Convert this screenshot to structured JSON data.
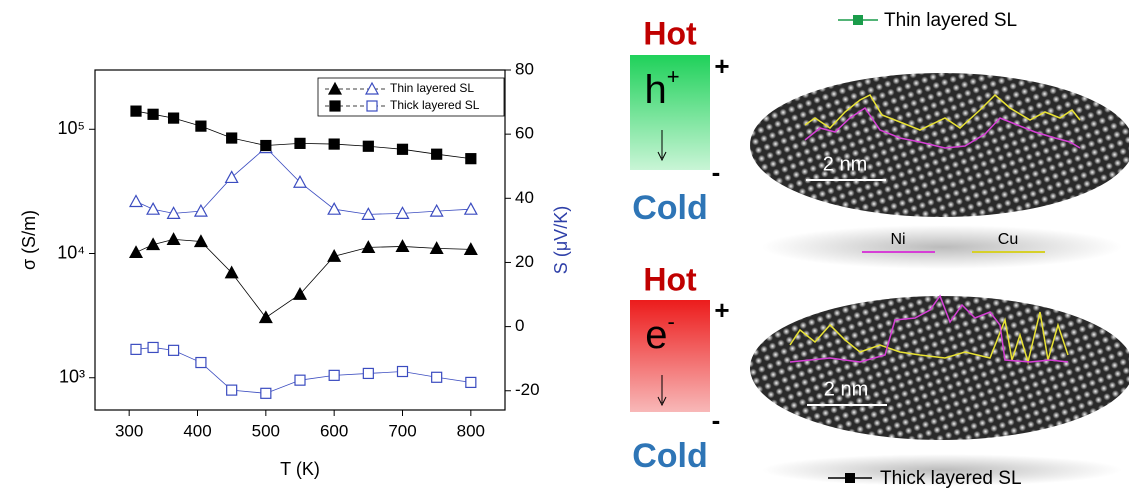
{
  "chart_data": {
    "type": "dual-axis-scatter",
    "x_label": "T (K)",
    "y_label": "σ (S/m)",
    "y2_label": "S (μV/K)",
    "x": [
      310,
      335,
      365,
      405,
      450,
      500,
      550,
      600,
      650,
      700,
      750,
      800
    ],
    "xlim": [
      250,
      850
    ],
    "xticks": [
      300,
      400,
      500,
      600,
      700,
      800
    ],
    "ylim": [
      550,
      300000
    ],
    "log_y": true,
    "yticks": [
      {
        "value": 1000,
        "label": "10³"
      },
      {
        "value": 10000,
        "label": "10⁴"
      },
      {
        "value": 100000,
        "label": "10⁵"
      }
    ],
    "y2lim": [
      -26,
      80
    ],
    "y2ticks": [
      -20,
      0,
      20,
      40,
      60,
      80
    ],
    "y2_color": "#2e3fa8",
    "legend": "upper right",
    "series": [
      {
        "name": "Thin layered SL",
        "marker": "triangle",
        "color": "#000000",
        "y2_color": "#3b4cc0",
        "values": [
          10200,
          11800,
          13000,
          12500,
          7000,
          3050,
          4700,
          9500,
          11200,
          11400,
          11000,
          10800
        ],
        "y2_values": [
          39,
          36.6,
          35.3,
          36,
          46.5,
          55.8,
          45,
          36.6,
          35,
          35.3,
          36,
          36.6
        ]
      },
      {
        "name": "Thick layered SL",
        "marker": "square",
        "color": "#000000",
        "y2_color": "#3b4cc0",
        "values": [
          140000,
          132000,
          123000,
          106000,
          85000,
          74000,
          77000,
          76000,
          73000,
          69000,
          63000,
          58000
        ],
        "y2_values": [
          -7.1,
          -6.5,
          -7.4,
          -11.2,
          -19.8,
          -20.8,
          -16.7,
          -15.2,
          -14.6,
          -14,
          -15.8,
          -17.4
        ]
      }
    ]
  },
  "diagram": {
    "p_type": {
      "hot": "Hot",
      "carrier": "h",
      "carrier_sign": "+",
      "plus": "+",
      "minus": "-",
      "cold": "Cold"
    },
    "n_type": {
      "hot": "Hot",
      "carrier": "e",
      "carrier_sign": "-",
      "plus": "+",
      "minus": "-",
      "cold": "Cold"
    }
  },
  "images": {
    "top_legend": "Thin layered SL",
    "top_scale": "2 nm",
    "ni_label": "Ni",
    "cu_label": "Cu",
    "bottom_scale": "2 nm",
    "bottom_legend": "Thick layered SL"
  }
}
